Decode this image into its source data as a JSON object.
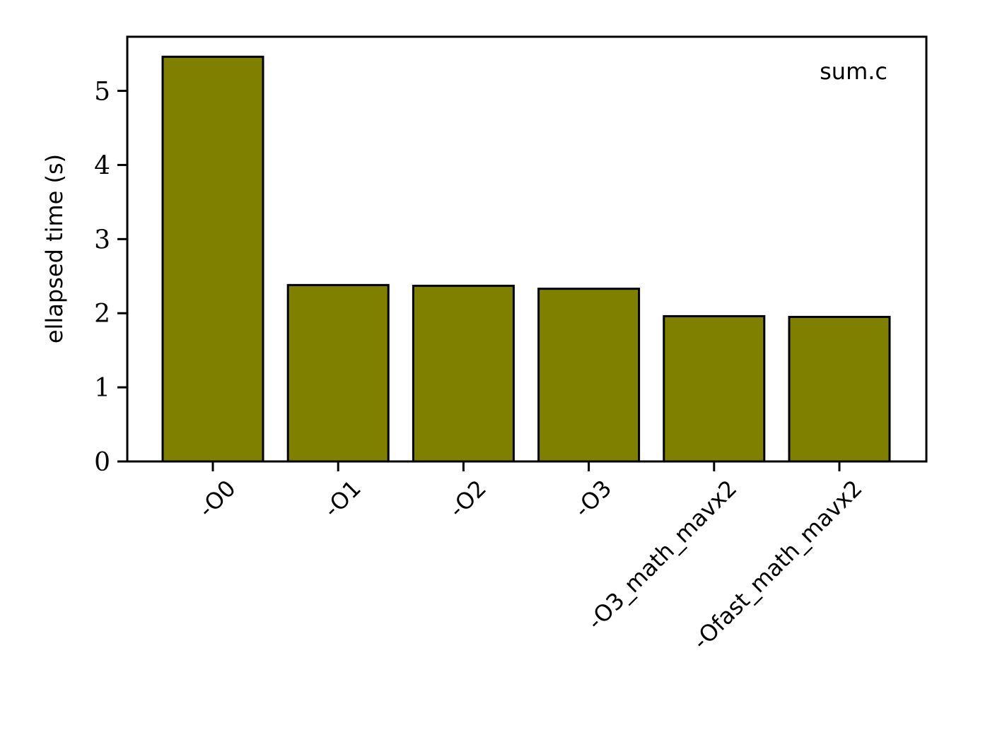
{
  "chart_data": {
    "type": "bar",
    "categories": [
      "-O0",
      "-O1",
      "-O2",
      "-O3",
      "-O3_math_mavx2",
      "-Ofast_math_mavx2"
    ],
    "values": [
      5.46,
      2.38,
      2.37,
      2.33,
      1.96,
      1.95
    ],
    "ylabel": "ellapsed time (s)",
    "xlabel": "",
    "annotation": "sum.c",
    "ylim": [
      0,
      5.73
    ],
    "yticks": [
      0,
      1,
      2,
      3,
      4,
      5
    ],
    "bar_color": "#808000",
    "edge_color": "#000000",
    "grid": false,
    "legend": "none"
  }
}
